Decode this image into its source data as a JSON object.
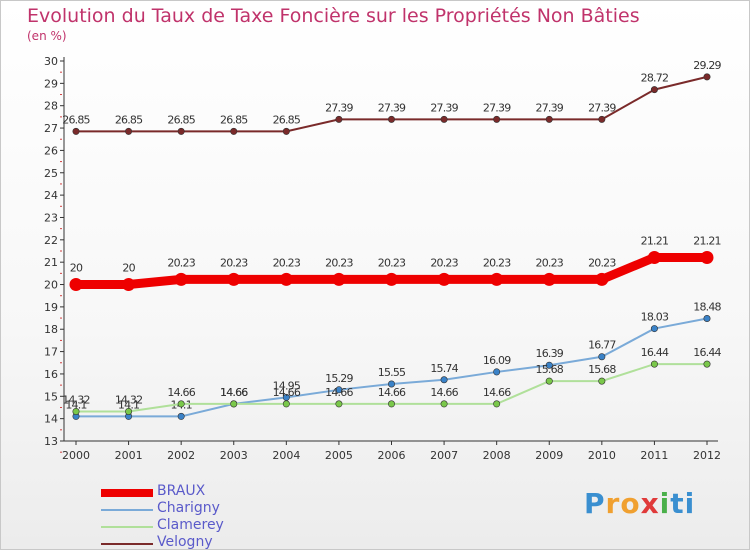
{
  "header": {
    "title": "Evolution du Taux de Taxe Foncière sur les Propriétés Non Bâties",
    "unit": "(en %)"
  },
  "logo": {
    "text": "Proxiti",
    "parts": [
      "P",
      "r",
      "o",
      "x",
      "i",
      "ti"
    ]
  },
  "chart_data": {
    "type": "line",
    "title": "Evolution du Taux de Taxe Foncière sur les Propriétés Non Bâties",
    "ylabel": "(en %)",
    "xlabel": "",
    "ylim": [
      13,
      30
    ],
    "yticks": [
      "13",
      "14",
      "15",
      "16",
      "17",
      "18",
      "19",
      "20",
      "21",
      "22",
      "23",
      "24",
      "25",
      "26",
      "27",
      "28",
      "29",
      "30"
    ],
    "categories": [
      "2000",
      "2001",
      "2002",
      "2003",
      "2004",
      "2005",
      "2006",
      "2007",
      "2008",
      "2009",
      "2010",
      "2011",
      "2012"
    ],
    "series": [
      {
        "name": "Velogny",
        "color": "#7a2a2a",
        "values": [
          26.85,
          26.85,
          26.85,
          26.85,
          26.85,
          27.39,
          27.39,
          27.39,
          27.39,
          27.39,
          27.39,
          28.72,
          29.29
        ],
        "labels": [
          "26.85",
          "26.85",
          "26.85",
          "26.85",
          "26.85",
          "27.39",
          "27.39",
          "27.39",
          "27.39",
          "27.39",
          "27.39",
          "28.72",
          "29.29"
        ]
      },
      {
        "name": "BRAUX",
        "color": "#ee0000",
        "values": [
          20,
          20,
          20.23,
          20.23,
          20.23,
          20.23,
          20.23,
          20.23,
          20.23,
          20.23,
          20.23,
          21.21,
          21.21
        ],
        "labels": [
          "20",
          "20",
          "20.23",
          "20.23",
          "20.23",
          "20.23",
          "20.23",
          "20.23",
          "20.23",
          "20.23",
          "20.23",
          "21.21",
          "21.21"
        ]
      },
      {
        "name": "Charigny",
        "color": "#7aaad8",
        "marker": "#3a82c8",
        "values": [
          14.1,
          14.1,
          14.1,
          14.66,
          14.95,
          15.29,
          15.55,
          15.74,
          16.09,
          16.39,
          16.77,
          18.03,
          18.48
        ],
        "labels": [
          "14.1",
          "14.1",
          "14.1",
          "14.66",
          "14.95",
          "15.29",
          "15.55",
          "15.74",
          "16.09",
          "16.39",
          "16.77",
          "18.03",
          "18.48"
        ]
      },
      {
        "name": "Clamerey",
        "color": "#b0e09a",
        "marker": "#7ac84a",
        "values": [
          14.32,
          14.32,
          14.66,
          14.66,
          14.66,
          14.66,
          14.66,
          14.66,
          14.66,
          15.68,
          15.68,
          16.44,
          16.44
        ],
        "labels": [
          "14.32",
          "14.32",
          "14.66",
          "14.66",
          "14.66",
          "14.66",
          "14.66",
          "14.66",
          "14.66",
          "15.68",
          "15.68",
          "16.44",
          "16.44"
        ]
      }
    ],
    "legend": [
      {
        "name": "BRAUX",
        "color": "#ee0000"
      },
      {
        "name": "Charigny",
        "color": "#7aaad8"
      },
      {
        "name": "Clamerey",
        "color": "#b0e09a"
      },
      {
        "name": "Velogny",
        "color": "#7a2a2a"
      }
    ]
  }
}
